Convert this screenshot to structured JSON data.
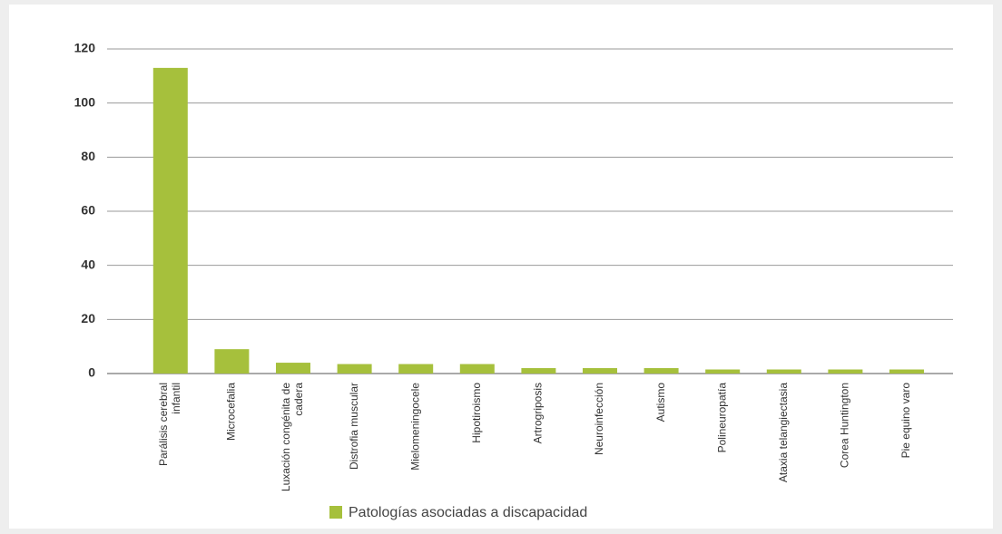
{
  "chart_data": {
    "type": "bar",
    "categories": [
      "Parálisis cerebral infantil",
      "Microcefalia",
      "Luxación congénita de cadera",
      "Distrofia muscular",
      "Mielomeningocele",
      "Hipotiroismo",
      "Artrogriposis",
      "Neuroinfección",
      "Autismo",
      "Polineuropatía",
      "Ataxia telangiectasia",
      "Corea Huntington",
      "Pie equino varo"
    ],
    "series": [
      {
        "name": "Patologías asociadas a discapacidad",
        "color": "#a6c03c",
        "values": [
          113,
          9,
          4,
          3.5,
          3.5,
          3.5,
          2,
          2,
          2,
          1.5,
          1.5,
          1.5,
          1.5
        ]
      }
    ],
    "ylim": [
      0,
      120
    ],
    "yticks": [
      0,
      20,
      40,
      60,
      80,
      100,
      120
    ],
    "grid": true,
    "legend": "bottom"
  }
}
